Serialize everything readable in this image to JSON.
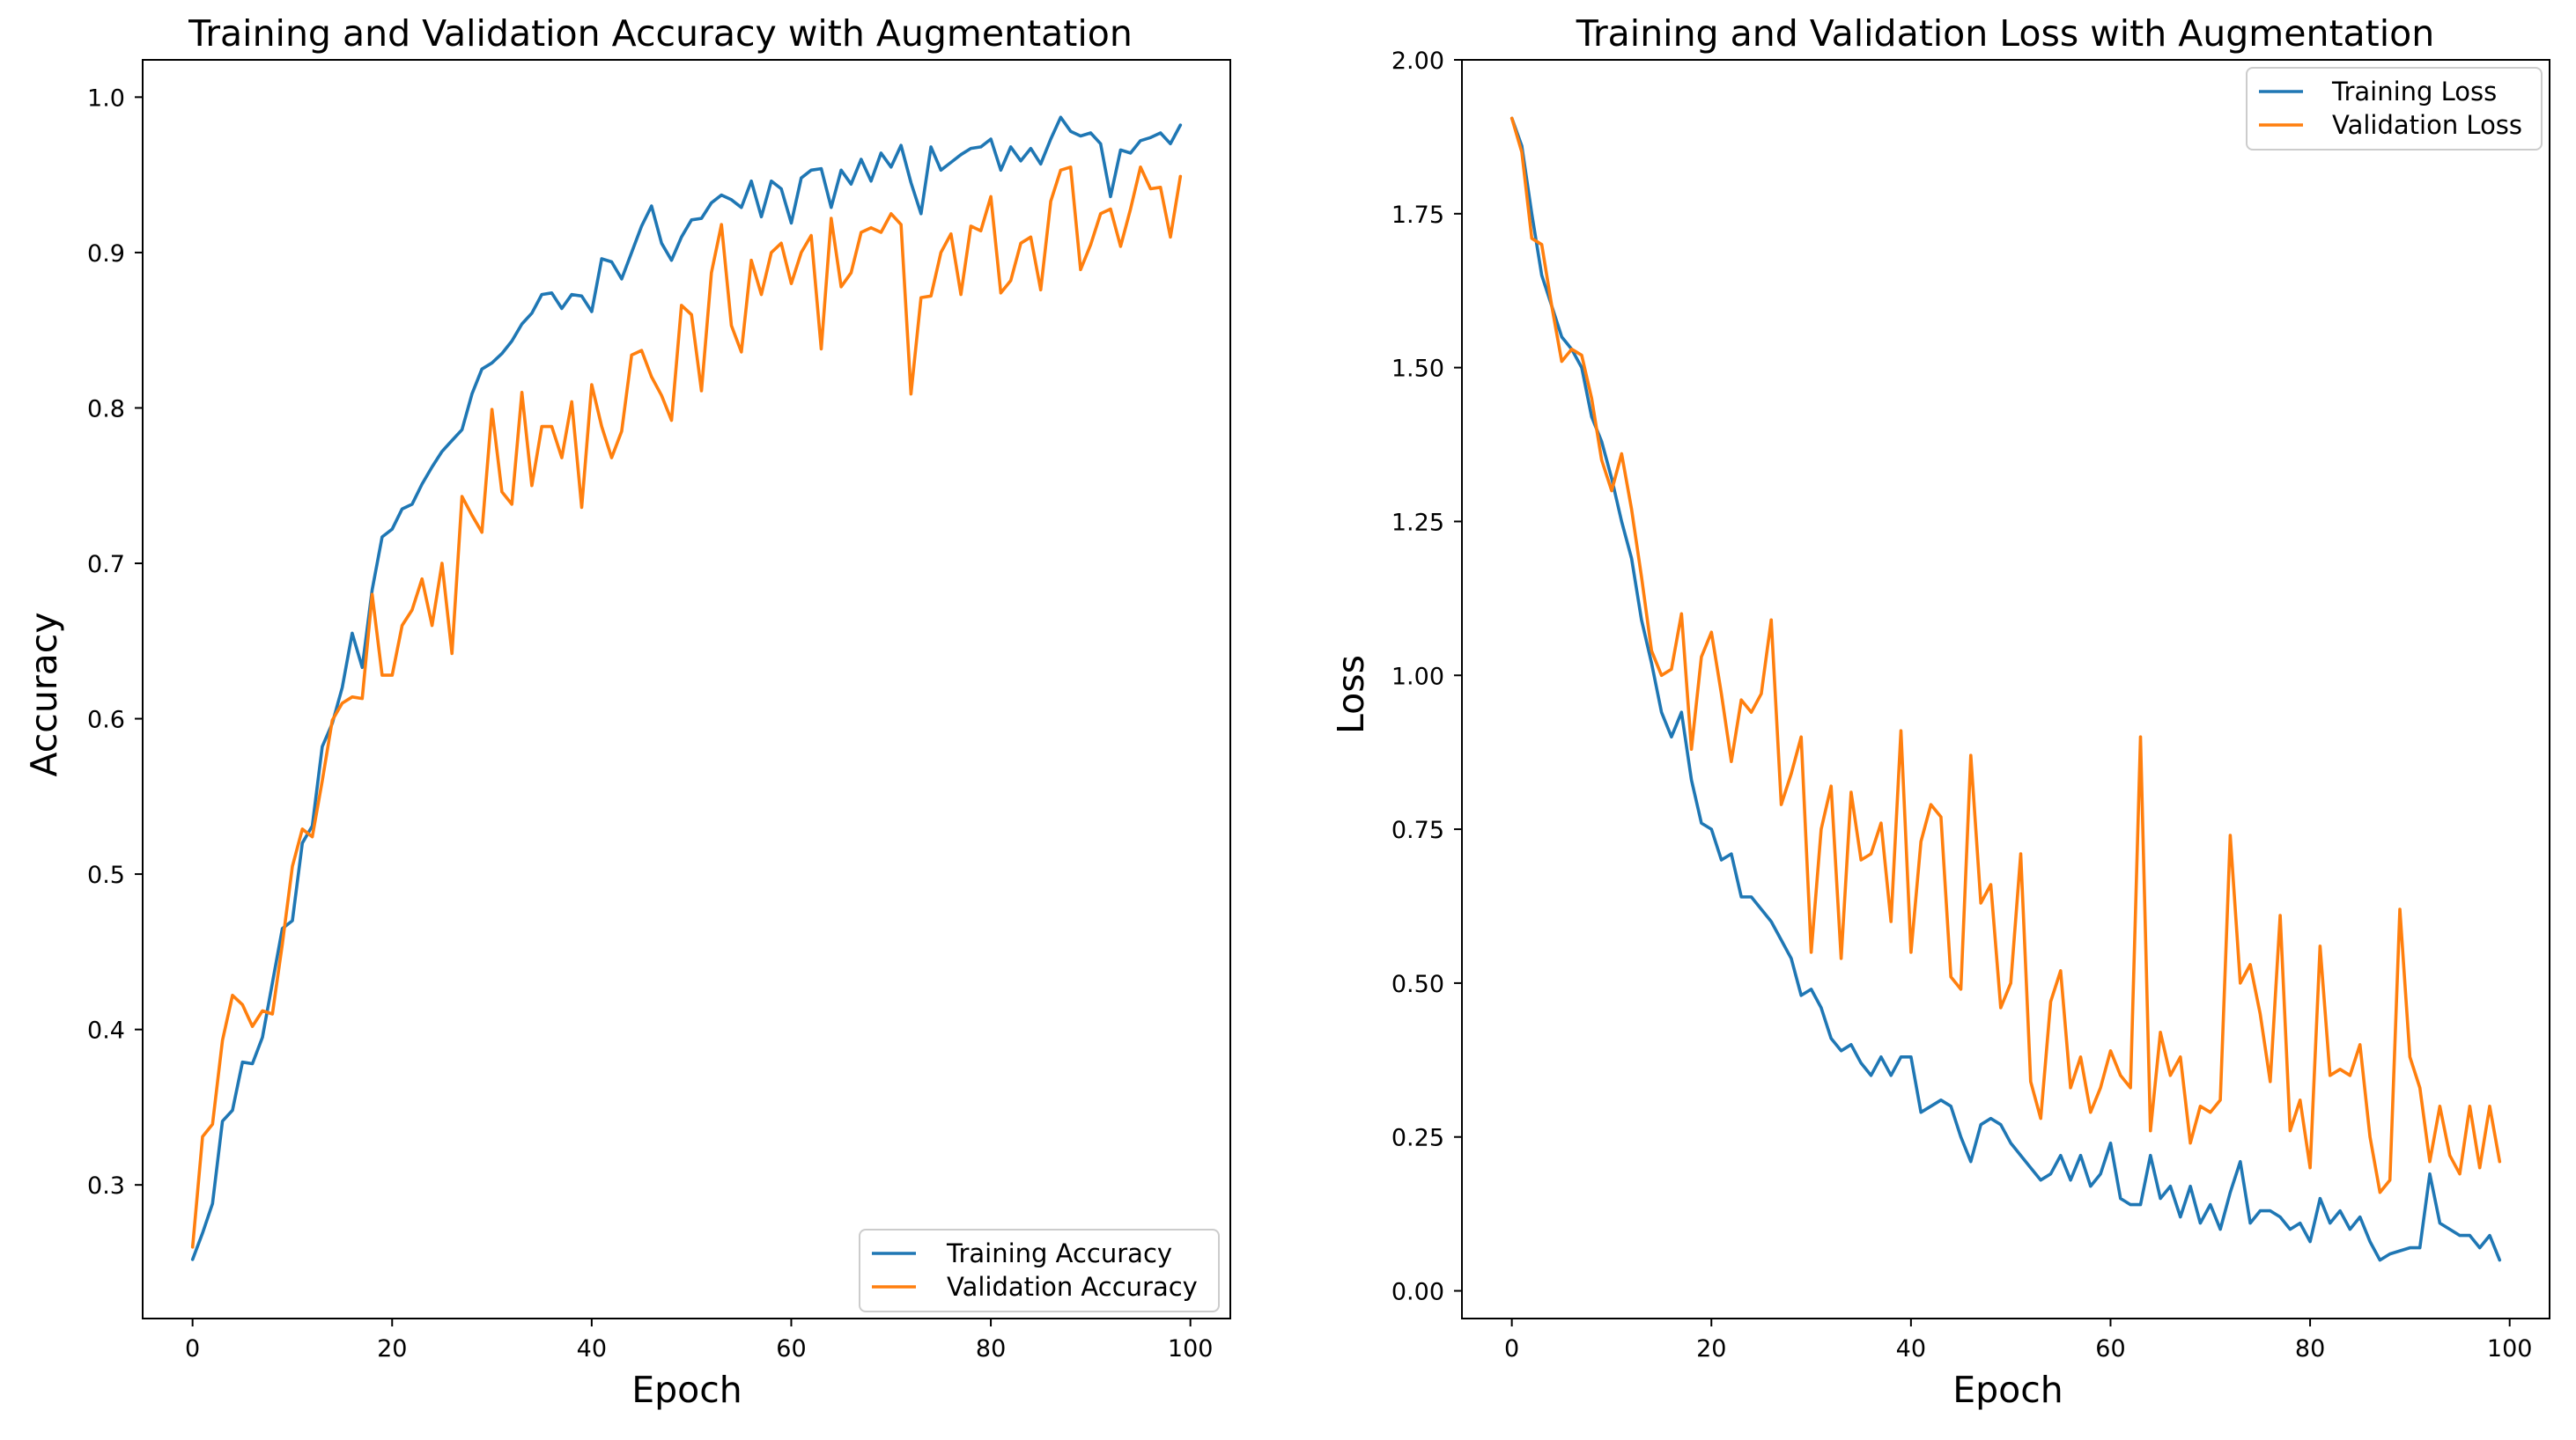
{
  "colors": {
    "training": "#1f77b4",
    "validation": "#ff7f0e"
  },
  "chart_data": [
    {
      "type": "line",
      "title": "Training and Validation Accuracy with Augmentation",
      "xlabel": "Epoch",
      "ylabel": "Accuracy",
      "xlim": [
        -5,
        104
      ],
      "ylim": [
        0.214,
        1.024
      ],
      "xticks": [
        0,
        20,
        40,
        60,
        80,
        100
      ],
      "xtick_labels": [
        "0",
        "20",
        "40",
        "60",
        "80",
        "100"
      ],
      "yticks": [
        0.3,
        0.4,
        0.5,
        0.6,
        0.7,
        0.8,
        0.9,
        1.0
      ],
      "ytick_labels": [
        "0.3",
        "0.4",
        "0.5",
        "0.6",
        "0.7",
        "0.8",
        "0.9",
        "1.0"
      ],
      "grid": false,
      "legend_position": "lower-right",
      "series": [
        {
          "name": "Training Accuracy",
          "color": "#1f77b4",
          "values": [
            0.252,
            0.269,
            0.288,
            0.341,
            0.348,
            0.379,
            0.378,
            0.395,
            0.43,
            0.465,
            0.47,
            0.52,
            0.531,
            0.582,
            0.597,
            0.62,
            0.655,
            0.633,
            0.683,
            0.717,
            0.722,
            0.735,
            0.738,
            0.751,
            0.762,
            0.772,
            0.779,
            0.786,
            0.809,
            0.825,
            0.829,
            0.835,
            0.843,
            0.854,
            0.861,
            0.873,
            0.874,
            0.864,
            0.873,
            0.872,
            0.862,
            0.896,
            0.894,
            0.883,
            0.9,
            0.917,
            0.93,
            0.906,
            0.895,
            0.91,
            0.921,
            0.922,
            0.932,
            0.937,
            0.934,
            0.929,
            0.946,
            0.923,
            0.946,
            0.941,
            0.919,
            0.948,
            0.953,
            0.954,
            0.929,
            0.953,
            0.944,
            0.96,
            0.946,
            0.964,
            0.955,
            0.969,
            0.945,
            0.925,
            0.968,
            0.953,
            0.958,
            0.963,
            0.967,
            0.968,
            0.973,
            0.953,
            0.968,
            0.959,
            0.967,
            0.957,
            0.973,
            0.987,
            0.978,
            0.975,
            0.977,
            0.97,
            0.936,
            0.966,
            0.964,
            0.972,
            0.974,
            0.977,
            0.97,
            0.982
          ]
        },
        {
          "name": "Validation Accuracy",
          "color": "#ff7f0e",
          "values": [
            0.26,
            0.331,
            0.339,
            0.393,
            0.422,
            0.416,
            0.402,
            0.412,
            0.41,
            0.455,
            0.505,
            0.529,
            0.524,
            0.56,
            0.599,
            0.61,
            0.614,
            0.613,
            0.68,
            0.628,
            0.628,
            0.66,
            0.67,
            0.69,
            0.66,
            0.7,
            0.642,
            0.743,
            0.731,
            0.72,
            0.799,
            0.746,
            0.738,
            0.81,
            0.75,
            0.788,
            0.788,
            0.768,
            0.804,
            0.736,
            0.815,
            0.788,
            0.768,
            0.785,
            0.834,
            0.837,
            0.82,
            0.808,
            0.792,
            0.866,
            0.86,
            0.811,
            0.887,
            0.918,
            0.853,
            0.836,
            0.895,
            0.873,
            0.9,
            0.906,
            0.88,
            0.9,
            0.911,
            0.838,
            0.922,
            0.878,
            0.887,
            0.913,
            0.916,
            0.913,
            0.925,
            0.918,
            0.809,
            0.871,
            0.872,
            0.9,
            0.912,
            0.873,
            0.917,
            0.914,
            0.936,
            0.874,
            0.882,
            0.906,
            0.91,
            0.876,
            0.933,
            0.953,
            0.955,
            0.889,
            0.905,
            0.925,
            0.928,
            0.904,
            0.928,
            0.955,
            0.941,
            0.942,
            0.91,
            0.949
          ]
        }
      ]
    },
    {
      "type": "line",
      "title": "Training and Validation Loss with Augmentation",
      "xlabel": "Epoch",
      "ylabel": "Loss",
      "xlim": [
        -5,
        104
      ],
      "ylim": [
        -0.045,
        2.0
      ],
      "xticks": [
        0,
        20,
        40,
        60,
        80,
        100
      ],
      "xtick_labels": [
        "0",
        "20",
        "40",
        "60",
        "80",
        "100"
      ],
      "yticks": [
        0.0,
        0.25,
        0.5,
        0.75,
        1.0,
        1.25,
        1.5,
        1.75,
        2.0
      ],
      "ytick_labels": [
        "0.00",
        "0.25",
        "0.50",
        "0.75",
        "1.00",
        "1.25",
        "1.50",
        "1.75",
        "2.00"
      ],
      "grid": false,
      "legend_position": "upper-right",
      "series": [
        {
          "name": "Training Loss",
          "color": "#1f77b4",
          "values": [
            1.905,
            1.86,
            1.75,
            1.65,
            1.6,
            1.55,
            1.53,
            1.5,
            1.42,
            1.38,
            1.32,
            1.25,
            1.19,
            1.09,
            1.02,
            0.94,
            0.9,
            0.94,
            0.83,
            0.76,
            0.75,
            0.7,
            0.71,
            0.64,
            0.64,
            0.62,
            0.6,
            0.57,
            0.54,
            0.48,
            0.49,
            0.46,
            0.41,
            0.39,
            0.4,
            0.37,
            0.35,
            0.38,
            0.35,
            0.38,
            0.38,
            0.29,
            0.3,
            0.31,
            0.3,
            0.25,
            0.21,
            0.27,
            0.28,
            0.27,
            0.24,
            0.22,
            0.2,
            0.18,
            0.19,
            0.22,
            0.18,
            0.22,
            0.17,
            0.19,
            0.24,
            0.15,
            0.14,
            0.14,
            0.22,
            0.15,
            0.17,
            0.12,
            0.17,
            0.11,
            0.14,
            0.1,
            0.16,
            0.21,
            0.11,
            0.13,
            0.13,
            0.12,
            0.1,
            0.11,
            0.08,
            0.15,
            0.11,
            0.13,
            0.1,
            0.12,
            0.08,
            0.05,
            0.06,
            0.065,
            0.07,
            0.07,
            0.19,
            0.11,
            0.1,
            0.09,
            0.09,
            0.07,
            0.09,
            0.05
          ]
        },
        {
          "name": "Validation Loss",
          "color": "#ff7f0e",
          "values": [
            1.905,
            1.85,
            1.71,
            1.7,
            1.6,
            1.51,
            1.53,
            1.52,
            1.45,
            1.35,
            1.3,
            1.36,
            1.27,
            1.16,
            1.04,
            1.0,
            1.01,
            1.1,
            0.88,
            1.03,
            1.07,
            0.97,
            0.86,
            0.96,
            0.94,
            0.97,
            1.09,
            0.79,
            0.84,
            0.9,
            0.55,
            0.75,
            0.82,
            0.54,
            0.81,
            0.7,
            0.71,
            0.76,
            0.6,
            0.91,
            0.55,
            0.73,
            0.79,
            0.77,
            0.51,
            0.49,
            0.87,
            0.63,
            0.66,
            0.46,
            0.5,
            0.71,
            0.34,
            0.28,
            0.47,
            0.52,
            0.33,
            0.38,
            0.29,
            0.33,
            0.39,
            0.35,
            0.33,
            0.9,
            0.26,
            0.42,
            0.35,
            0.38,
            0.24,
            0.3,
            0.29,
            0.31,
            0.74,
            0.5,
            0.53,
            0.45,
            0.34,
            0.61,
            0.26,
            0.31,
            0.2,
            0.56,
            0.35,
            0.36,
            0.35,
            0.4,
            0.25,
            0.16,
            0.18,
            0.62,
            0.38,
            0.33,
            0.21,
            0.3,
            0.22,
            0.19,
            0.3,
            0.2,
            0.3,
            0.21
          ]
        }
      ]
    }
  ]
}
